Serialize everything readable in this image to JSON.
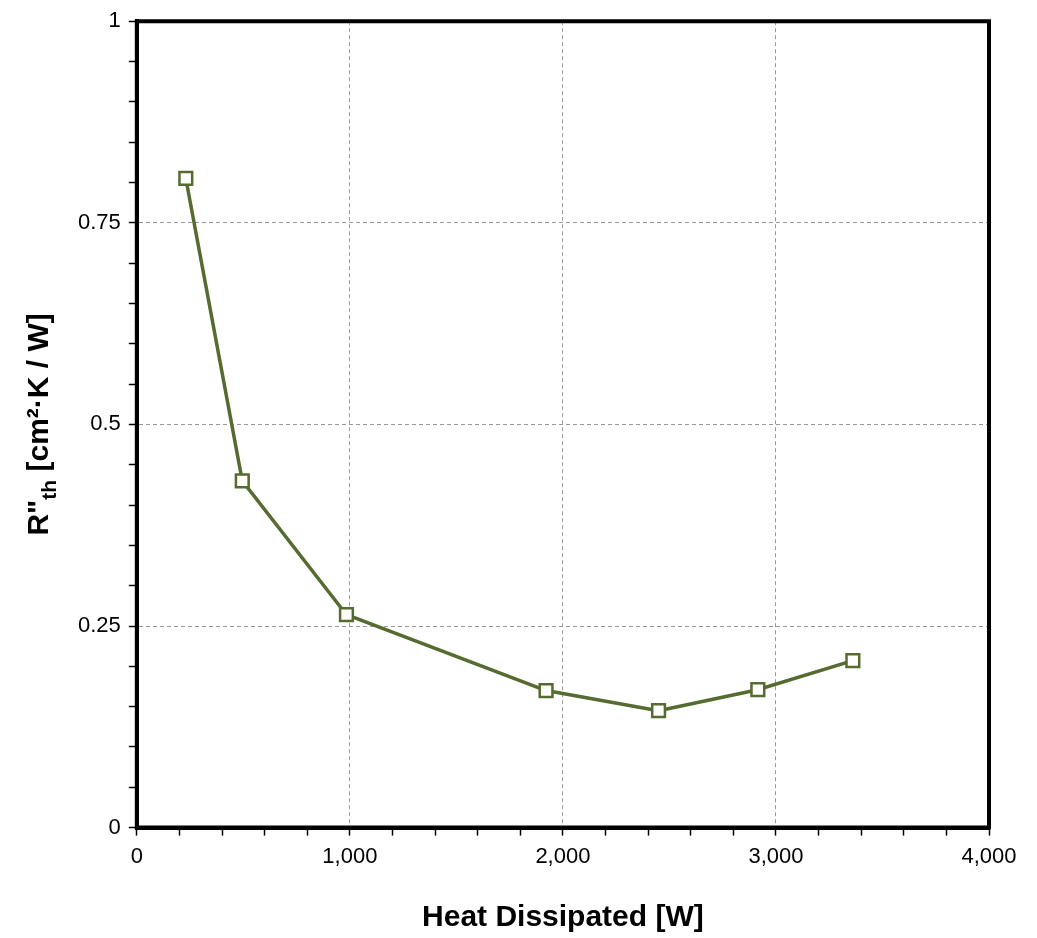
{
  "chart_data": {
    "type": "line",
    "xlabel": "Heat Dissipated [W]",
    "ylabel": "R\"$_{th}$ [cm²·K / W]",
    "x": [
      230,
      495,
      984,
      1921,
      2449,
      2915,
      3361
    ],
    "series": [
      {
        "color": "#556b2f",
        "values": [
          0.805,
          0.43,
          0.264,
          0.17,
          0.145,
          0.171,
          0.207
        ]
      }
    ],
    "xlim": [
      0,
      4000
    ],
    "xticks": [
      {
        "value": 0,
        "label": "0"
      },
      {
        "value": 200,
        "label": null
      },
      {
        "value": 400,
        "label": null
      },
      {
        "value": 600,
        "label": null
      },
      {
        "value": 800,
        "label": null
      },
      {
        "value": 1000,
        "label": "1,000"
      },
      {
        "value": 1200,
        "label": null
      },
      {
        "value": 1400,
        "label": null
      },
      {
        "value": 1600,
        "label": null
      },
      {
        "value": 1800,
        "label": null
      },
      {
        "value": 2000,
        "label": "2,000"
      },
      {
        "value": 2200,
        "label": null
      },
      {
        "value": 2400,
        "label": null
      },
      {
        "value": 2600,
        "label": null
      },
      {
        "value": 2800,
        "label": null
      },
      {
        "value": 3000,
        "label": "3,000"
      },
      {
        "value": 3200,
        "label": null
      },
      {
        "value": 3400,
        "label": null
      },
      {
        "value": 3600,
        "label": null
      },
      {
        "value": 3800,
        "label": null
      },
      {
        "value": 4000,
        "label": "4,000"
      }
    ],
    "ylim": [
      0,
      1
    ],
    "yticks": [
      0,
      {
        "value": 0.05,
        "label": null
      },
      {
        "value": 0.1,
        "label": null
      },
      {
        "value": 0.15,
        "label": null
      },
      {
        "value": 0.2,
        "label": null
      },
      0.25,
      {
        "value": 0.3,
        "label": null
      },
      {
        "value": 0.35,
        "label": null
      },
      {
        "value": 0.4,
        "label": null
      },
      {
        "value": 0.45,
        "label": null
      },
      0.5,
      {
        "value": 0.55,
        "label": null
      },
      {
        "value": 0.6,
        "label": null
      },
      {
        "value": 0.65,
        "label": null
      },
      {
        "value": 0.7,
        "label": null
      },
      0.75,
      {
        "value": 0.8,
        "label": null
      },
      {
        "value": 0.85,
        "label": null
      },
      {
        "value": 0.9,
        "label": null
      },
      {
        "value": 0.95,
        "label": null
      },
      1
    ],
    "grid": true,
    "legend": false,
    "marker": "square",
    "line_style": "solid"
  }
}
